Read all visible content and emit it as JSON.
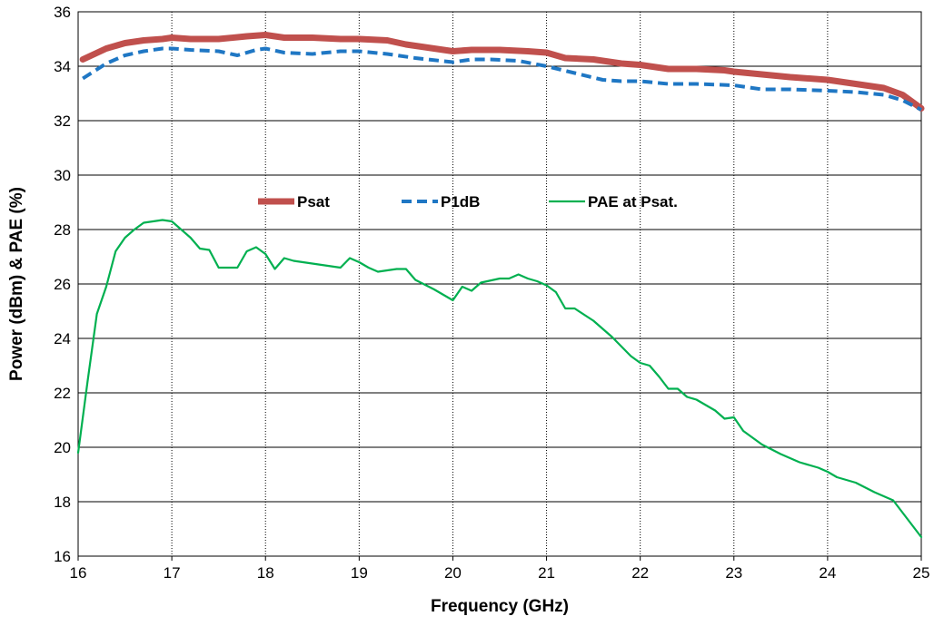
{
  "chart_data": {
    "type": "line",
    "title": "",
    "xlabel": "Frequency (GHz)",
    "ylabel": "Power (dBm) & PAE (%)",
    "xlim": [
      16,
      25
    ],
    "ylim": [
      16,
      36
    ],
    "x_ticks": [
      16,
      17,
      18,
      19,
      20,
      21,
      22,
      23,
      24,
      25
    ],
    "y_ticks": [
      16,
      18,
      20,
      22,
      24,
      26,
      28,
      30,
      32,
      34,
      36
    ],
    "grid": "major grid, solid horizontal lines and dotted vertical lines",
    "legend_placement": "center",
    "series": [
      {
        "name": "Psat",
        "color": "#C0504D",
        "style": "solid-thick",
        "x": [
          16.05,
          16.3,
          16.5,
          16.7,
          16.9,
          17.0,
          17.2,
          17.5,
          17.8,
          18.0,
          18.2,
          18.5,
          18.8,
          19.0,
          19.3,
          19.5,
          19.8,
          20.0,
          20.2,
          20.5,
          20.8,
          21.0,
          21.2,
          21.5,
          21.8,
          22.0,
          22.3,
          22.6,
          22.9,
          23.0,
          23.3,
          23.6,
          24.0,
          24.3,
          24.6,
          24.8,
          25.0
        ],
        "y": [
          34.25,
          34.65,
          34.85,
          34.95,
          35.0,
          35.05,
          35.0,
          35.0,
          35.1,
          35.15,
          35.05,
          35.05,
          35.0,
          35.0,
          34.95,
          34.8,
          34.65,
          34.55,
          34.6,
          34.6,
          34.55,
          34.5,
          34.3,
          34.25,
          34.1,
          34.05,
          33.9,
          33.9,
          33.85,
          33.8,
          33.7,
          33.6,
          33.5,
          33.35,
          33.2,
          32.95,
          32.45
        ]
      },
      {
        "name": "P1dB",
        "color": "#1F77C4",
        "style": "dashed",
        "x": [
          16.05,
          16.3,
          16.5,
          16.7,
          16.9,
          17.0,
          17.2,
          17.5,
          17.7,
          17.9,
          18.0,
          18.2,
          18.5,
          18.8,
          19.0,
          19.3,
          19.6,
          20.0,
          20.2,
          20.4,
          20.7,
          21.0,
          21.3,
          21.6,
          21.8,
          22.0,
          22.3,
          22.6,
          23.0,
          23.3,
          23.6,
          24.0,
          24.3,
          24.6,
          24.8,
          25.0
        ],
        "y": [
          33.55,
          34.1,
          34.4,
          34.55,
          34.65,
          34.65,
          34.6,
          34.55,
          34.4,
          34.6,
          34.65,
          34.5,
          34.45,
          34.55,
          34.55,
          34.45,
          34.3,
          34.15,
          34.25,
          34.25,
          34.2,
          34.0,
          33.75,
          33.5,
          33.45,
          33.45,
          33.35,
          33.35,
          33.3,
          33.15,
          33.15,
          33.1,
          33.05,
          32.95,
          32.75,
          32.4
        ]
      },
      {
        "name": "PAE at Psat.",
        "color": "#00B050",
        "style": "solid-thin",
        "x": [
          16.0,
          16.1,
          16.2,
          16.3,
          16.4,
          16.5,
          16.6,
          16.7,
          16.8,
          16.9,
          17.0,
          17.1,
          17.2,
          17.3,
          17.4,
          17.5,
          17.6,
          17.7,
          17.8,
          17.9,
          18.0,
          18.1,
          18.2,
          18.3,
          18.4,
          18.6,
          18.8,
          18.9,
          19.0,
          19.1,
          19.2,
          19.4,
          19.5,
          19.6,
          19.8,
          20.0,
          20.1,
          20.2,
          20.3,
          20.5,
          20.6,
          20.7,
          20.8,
          20.9,
          21.0,
          21.1,
          21.2,
          21.3,
          21.5,
          21.7,
          21.8,
          21.9,
          22.0,
          22.1,
          22.2,
          22.3,
          22.4,
          22.5,
          22.6,
          22.7,
          22.8,
          22.9,
          23.0,
          23.1,
          23.3,
          23.5,
          23.7,
          23.9,
          24.0,
          24.1,
          24.2,
          24.3,
          24.5,
          24.6,
          24.7,
          24.8,
          25.0
        ],
        "y": [
          19.8,
          22.4,
          24.9,
          25.9,
          27.2,
          27.7,
          28.0,
          28.25,
          28.3,
          28.35,
          28.3,
          28.0,
          27.7,
          27.3,
          27.25,
          26.6,
          26.6,
          26.6,
          27.2,
          27.35,
          27.1,
          26.55,
          26.95,
          26.85,
          26.8,
          26.7,
          26.6,
          26.95,
          26.8,
          26.6,
          26.45,
          26.55,
          26.55,
          26.15,
          25.8,
          25.4,
          25.9,
          25.75,
          26.05,
          26.2,
          26.2,
          26.35,
          26.2,
          26.1,
          25.95,
          25.7,
          25.1,
          25.1,
          24.65,
          24.05,
          23.7,
          23.35,
          23.1,
          23.0,
          22.6,
          22.15,
          22.15,
          21.85,
          21.75,
          21.55,
          21.35,
          21.05,
          21.1,
          20.6,
          20.1,
          19.75,
          19.45,
          19.25,
          19.1,
          18.9,
          18.8,
          18.7,
          18.35,
          18.2,
          18.05,
          17.6,
          16.7
        ]
      }
    ]
  }
}
